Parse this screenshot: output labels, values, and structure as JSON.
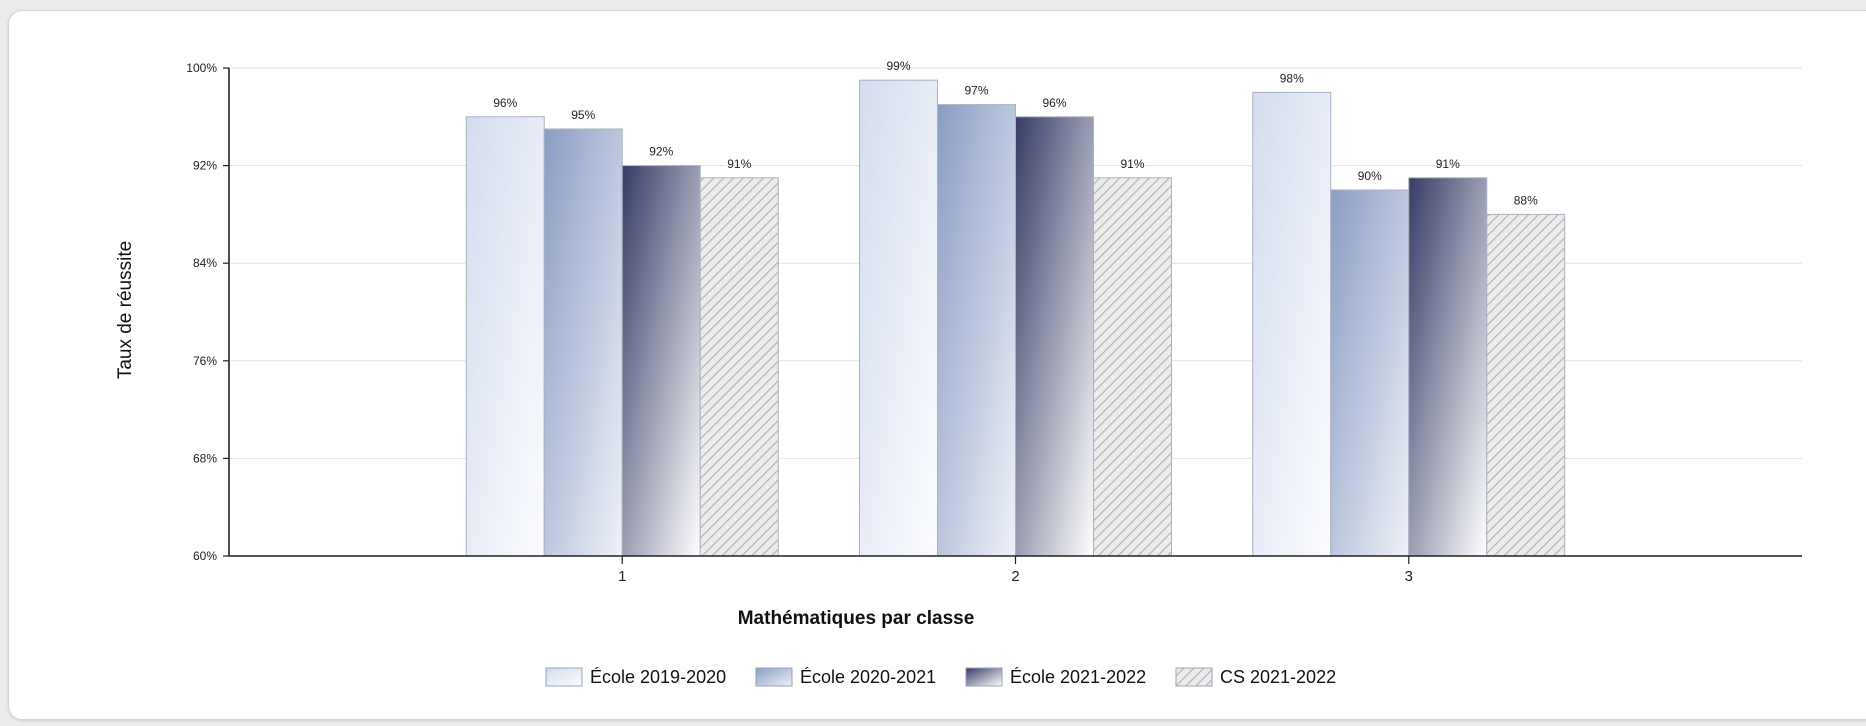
{
  "chart_data": {
    "type": "bar",
    "title": "",
    "xlabel": "Mathématiques par classe",
    "ylabel": "Taux de réussite",
    "categories": [
      "1",
      "2",
      "3"
    ],
    "yticks": [
      "60%",
      "68%",
      "76%",
      "84%",
      "92%",
      "100%"
    ],
    "ylim": [
      60,
      100
    ],
    "grid": true,
    "legend_position": "bottom",
    "series": [
      {
        "name": "École 2019-2020",
        "values": [
          96,
          99,
          98
        ],
        "labels": [
          "96%",
          "99%",
          "98%"
        ],
        "style": "gradient-light",
        "colors": [
          "#f7f9fd",
          "#d2dcf0"
        ]
      },
      {
        "name": "École 2020-2021",
        "values": [
          95,
          97,
          90
        ],
        "labels": [
          "95%",
          "97%",
          "90%"
        ],
        "style": "gradient-mid",
        "colors": [
          "#8da0c6",
          "#ecf0f8"
        ]
      },
      {
        "name": "École 2021-2022",
        "values": [
          92,
          96,
          91
        ],
        "labels": [
          "92%",
          "96%",
          "91%"
        ],
        "style": "gradient-dark",
        "colors": [
          "#3e4570",
          "#ffffff"
        ]
      },
      {
        "name": "CS 2021-2022",
        "values": [
          91,
          91,
          88
        ],
        "labels": [
          "91%",
          "91%",
          "88%"
        ],
        "style": "hatched",
        "colors": [
          "#e9e9e9",
          "#b5b5b5"
        ]
      }
    ]
  }
}
